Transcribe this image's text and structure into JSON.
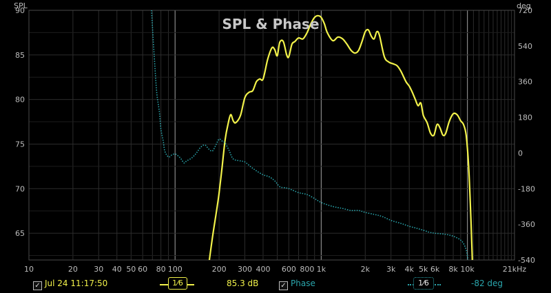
{
  "chart_data": {
    "type": "line",
    "title": "SPL & Phase",
    "left_axis": {
      "label": "SPL",
      "ylim": [
        62,
        90
      ],
      "ticks": [
        65,
        70,
        75,
        80,
        85,
        90
      ]
    },
    "right_axis": {
      "label": "deg",
      "ylim": [
        -540,
        720
      ],
      "ticks": [
        720,
        540,
        360,
        180,
        0,
        -180,
        -360,
        -540
      ]
    },
    "x_axis": {
      "scale": "log",
      "xlim": [
        10,
        21000
      ],
      "ticks": [
        {
          "v": 10,
          "t": "10"
        },
        {
          "v": 20,
          "t": "20"
        },
        {
          "v": 30,
          "t": "30"
        },
        {
          "v": 40,
          "t": "40"
        },
        {
          "v": 50,
          "t": "50"
        },
        {
          "v": 60,
          "t": "60"
        },
        {
          "v": 80,
          "t": "80"
        },
        {
          "v": 100,
          "t": "100"
        },
        {
          "v": 200,
          "t": "200"
        },
        {
          "v": 300,
          "t": "300"
        },
        {
          "v": 400,
          "t": "400"
        },
        {
          "v": 600,
          "t": "600"
        },
        {
          "v": 800,
          "t": "800"
        },
        {
          "v": 1000,
          "t": "1k"
        },
        {
          "v": 2000,
          "t": "2k"
        },
        {
          "v": 3000,
          "t": "3k"
        },
        {
          "v": 4000,
          "t": "4k"
        },
        {
          "v": 5000,
          "t": "5k"
        },
        {
          "v": 6000,
          "t": "6k"
        },
        {
          "v": 8000,
          "t": "8k"
        },
        {
          "v": 10000,
          "t": "10k"
        },
        {
          "v": 21000,
          "t": "21kHz"
        }
      ]
    },
    "grid": true,
    "series": [
      {
        "name": "",
        "axis": "left",
        "color": "#f2f24a",
        "style": "solid",
        "x": [
          170,
          180,
          190,
          200,
          210,
          220,
          230,
          240,
          250,
          260,
          280,
          300,
          320,
          340,
          360,
          380,
          400,
          430,
          460,
          480,
          500,
          520,
          550,
          580,
          600,
          630,
          660,
          700,
          750,
          800,
          850,
          900,
          950,
          1000,
          1050,
          1100,
          1200,
          1300,
          1400,
          1500,
          1600,
          1700,
          1800,
          1900,
          2000,
          2100,
          2200,
          2300,
          2400,
          2500,
          2700,
          2900,
          3100,
          3300,
          3500,
          3800,
          4000,
          4200,
          4400,
          4600,
          4800,
          5000,
          5300,
          5600,
          5900,
          6200,
          6500,
          6800,
          7100,
          7500,
          8000,
          8500,
          9000,
          9400,
          9800,
          10200,
          10600,
          11000
        ],
        "y": [
          61.5,
          64.5,
          67,
          69.5,
          72.5,
          75.5,
          77.2,
          78.3,
          77.6,
          77.4,
          78.2,
          80.2,
          80.8,
          81,
          82,
          82.3,
          82.3,
          84.5,
          85.8,
          85.6,
          84.9,
          86.4,
          86.5,
          85,
          84.8,
          86.2,
          86.5,
          86.9,
          86.8,
          87.5,
          88.5,
          89.2,
          89.4,
          89.2,
          88.5,
          87.5,
          86.6,
          87,
          86.8,
          86.2,
          85.5,
          85.2,
          85.5,
          86.5,
          87.6,
          87.8,
          87.1,
          86.8,
          87.6,
          87.2,
          84.8,
          84.2,
          84,
          83.8,
          83.2,
          82,
          81.5,
          80.8,
          80,
          79.3,
          79.6,
          78.2,
          77.4,
          76.2,
          76,
          77.2,
          76.8,
          76,
          76.2,
          77.5,
          78.4,
          78.3,
          77.6,
          77.2,
          76,
          72.5,
          66,
          58
        ]
      },
      {
        "name": "Phase",
        "axis": "right",
        "color": "#2aa6ad",
        "style": "dotted",
        "x": [
          69,
          71,
          73,
          75,
          78,
          80,
          83,
          85,
          90,
          95,
          100,
          105,
          110,
          115,
          120,
          130,
          140,
          150,
          160,
          170,
          180,
          190,
          200,
          210,
          220,
          235,
          250,
          280,
          300,
          330,
          360,
          400,
          440,
          480,
          520,
          560,
          600,
          700,
          800,
          900,
          1000,
          1200,
          1400,
          1600,
          1800,
          2000,
          2300,
          2600,
          3000,
          3500,
          4000,
          4500,
          5000,
          5500,
          6000,
          7000,
          8000,
          9000,
          9600,
          10000,
          10300
        ],
        "y": [
          720,
          560,
          420,
          300,
          210,
          120,
          60,
          10,
          -20,
          -10,
          -5,
          -15,
          -30,
          -50,
          -40,
          -25,
          0,
          30,
          40,
          20,
          10,
          40,
          70,
          60,
          50,
          10,
          -30,
          -40,
          -45,
          -70,
          -90,
          -110,
          -120,
          -140,
          -170,
          -175,
          -180,
          -200,
          -210,
          -230,
          -250,
          -270,
          -280,
          -290,
          -290,
          -300,
          -310,
          -320,
          -340,
          -355,
          -370,
          -380,
          -390,
          -400,
          -405,
          -410,
          -420,
          -440,
          -470,
          -520,
          -620
        ]
      }
    ]
  },
  "legend": {
    "timestamp": "Jul 24 11:17:50",
    "smoothing_yellow": "1⁄6",
    "level": "85.3 dB",
    "phase_label": "Phase",
    "smoothing_teal": "1⁄6",
    "phase_value": "-82 deg",
    "check_mark": "✓"
  }
}
